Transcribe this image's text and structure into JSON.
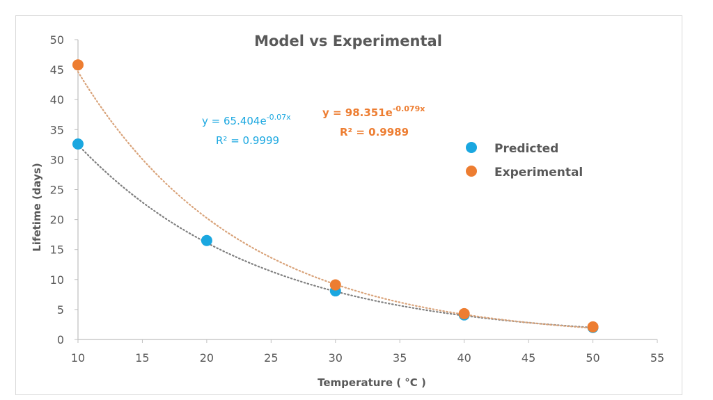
{
  "chart_data": {
    "type": "scatter",
    "title": "Model vs Experimental",
    "xlabel": "Temperature ( °C )",
    "ylabel": "Lifetime (days)",
    "xlim": [
      10,
      55
    ],
    "ylim": [
      0,
      50
    ],
    "xticks": [
      10,
      15,
      20,
      25,
      30,
      35,
      40,
      45,
      50,
      55
    ],
    "yticks": [
      0,
      5,
      10,
      15,
      20,
      25,
      30,
      35,
      40,
      45,
      50
    ],
    "grid": false,
    "legend_position": "right",
    "series": [
      {
        "name": "Predicted",
        "color": "#1aa7e0",
        "points": [
          [
            10,
            32.6
          ],
          [
            20,
            16.5
          ],
          [
            30,
            8.1
          ],
          [
            40,
            4.1
          ],
          [
            50,
            2.0
          ]
        ],
        "trendline": {
          "type": "exponential",
          "a": 65.404,
          "b": -0.07,
          "equation": "y = 65.404e",
          "exponent": "-0.07x",
          "r2_label": "R² = 0.9999",
          "color": "#1aa7e0"
        }
      },
      {
        "name": "Experimental",
        "color": "#ed7d31",
        "points": [
          [
            10,
            45.8
          ],
          [
            30,
            9.1
          ],
          [
            40,
            4.3
          ],
          [
            50,
            2.1
          ]
        ],
        "trendline": {
          "type": "exponential",
          "a": 98.351,
          "b": -0.079,
          "equation": "y = 98.351e",
          "exponent": "-0.079x",
          "r2_label": "R² = 0.9989",
          "color": "#ed7d31"
        }
      }
    ]
  }
}
